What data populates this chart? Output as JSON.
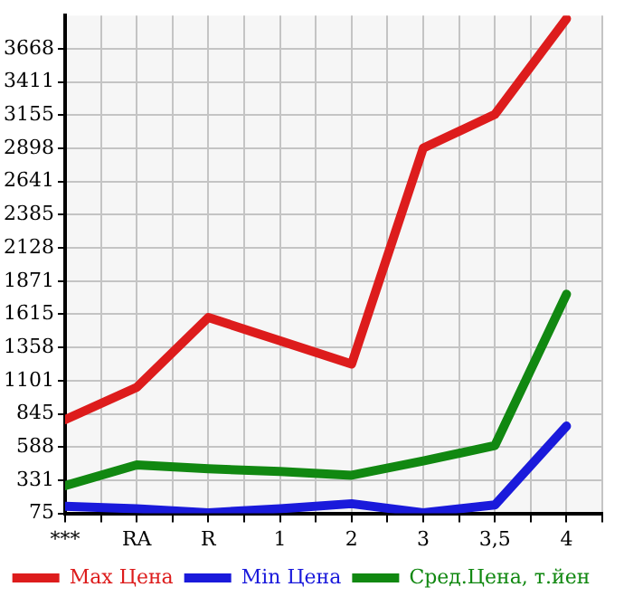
{
  "chart_data": {
    "type": "line",
    "categories": [
      "***",
      "RA",
      "R",
      "1",
      "2",
      "3",
      "3,5",
      "4"
    ],
    "series": [
      {
        "name": "Max Цена",
        "color": "#dd1c1c",
        "values": [
          800,
          1050,
          1590,
          1410,
          1230,
          2900,
          3160,
          3900
        ]
      },
      {
        "name": "Min Цена",
        "color": "#1a1adb",
        "values": [
          130,
          110,
          80,
          110,
          150,
          80,
          140,
          750
        ]
      },
      {
        "name": "Сред.Цена, т.йен",
        "color": "#118811",
        "values": [
          290,
          450,
          420,
          400,
          370,
          480,
          600,
          1770
        ]
      }
    ],
    "ylim": [
      75,
      3925
    ],
    "yticks": [
      75,
      331,
      588,
      845,
      1101,
      1358,
      1615,
      1871,
      2128,
      2385,
      2641,
      2898,
      3155,
      3411,
      3668
    ],
    "grid": true,
    "legend": "bottom",
    "marker": "none",
    "line_style": "solid"
  }
}
